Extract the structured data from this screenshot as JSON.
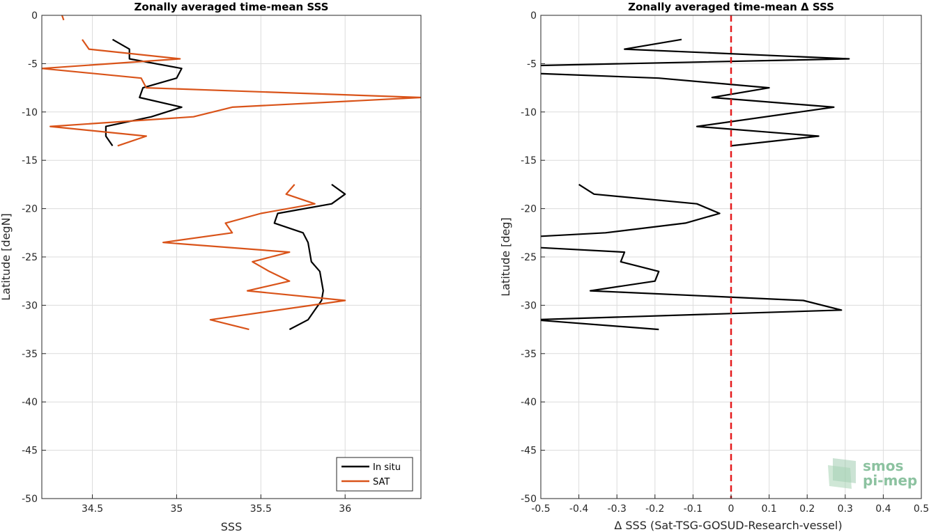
{
  "chart_data": [
    {
      "type": "line",
      "title": "Zonally averaged time-mean SSS",
      "xlabel": "SSS",
      "ylabel": "Latitude [degN]",
      "xlim": [
        34.2,
        36.45
      ],
      "ylim": [
        -50,
        0
      ],
      "xticks": [
        34.5,
        35,
        35.5,
        36
      ],
      "xtick_labels": [
        "34.5",
        "35",
        "35.5",
        "36"
      ],
      "yticks": [
        0,
        -5,
        -10,
        -15,
        -20,
        -25,
        -30,
        -35,
        -40,
        -45,
        -50
      ],
      "ytick_labels": [
        "0",
        "-5",
        "-10",
        "-15",
        "-20",
        "-25",
        "-30",
        "-35",
        "-40",
        "-45",
        "-50"
      ],
      "grid": true,
      "legend_position": "bottom-right",
      "series": [
        {
          "name": "In situ",
          "color": "#000000",
          "segments": [
            [
              [
                34.62,
                -2.5
              ],
              [
                34.72,
                -3.5
              ],
              [
                34.72,
                -4.5
              ],
              [
                35.03,
                -5.5
              ],
              [
                35.0,
                -6.5
              ],
              [
                34.8,
                -7.5
              ],
              [
                34.78,
                -8.5
              ],
              [
                35.03,
                -9.5
              ],
              [
                34.85,
                -10.5
              ],
              [
                34.58,
                -11.5
              ],
              [
                34.58,
                -12.5
              ],
              [
                34.62,
                -13.5
              ]
            ],
            [
              [
                35.92,
                -17.5
              ],
              [
                36.0,
                -18.5
              ],
              [
                35.92,
                -19.5
              ],
              [
                35.6,
                -20.5
              ],
              [
                35.58,
                -21.5
              ],
              [
                35.75,
                -22.5
              ],
              [
                35.78,
                -23.5
              ],
              [
                35.8,
                -25.5
              ],
              [
                35.85,
                -26.5
              ],
              [
                35.87,
                -28.5
              ],
              [
                35.86,
                -29.5
              ],
              [
                35.82,
                -30.5
              ],
              [
                35.78,
                -31.5
              ],
              [
                35.67,
                -32.5
              ]
            ]
          ]
        },
        {
          "name": "SAT",
          "color": "#d95319",
          "segments": [
            [
              [
                34.32,
                0
              ],
              [
                34.33,
                -0.5
              ]
            ],
            [
              [
                34.44,
                -2.5
              ],
              [
                34.48,
                -3.5
              ],
              [
                35.02,
                -4.5
              ],
              [
                34.2,
                -5.5
              ],
              [
                34.79,
                -6.5
              ],
              [
                34.82,
                -7.5
              ],
              [
                36.45,
                -8.5
              ],
              [
                35.33,
                -9.5
              ],
              [
                35.1,
                -10.5
              ],
              [
                34.25,
                -11.5
              ],
              [
                34.82,
                -12.5
              ],
              [
                34.65,
                -13.5
              ]
            ],
            [
              [
                35.7,
                -17.5
              ],
              [
                35.65,
                -18.5
              ],
              [
                35.82,
                -19.5
              ],
              [
                35.5,
                -20.5
              ],
              [
                35.29,
                -21.5
              ],
              [
                35.33,
                -22.5
              ],
              [
                34.92,
                -23.5
              ],
              [
                35.67,
                -24.5
              ],
              [
                35.45,
                -25.5
              ],
              [
                35.55,
                -26.5
              ],
              [
                35.67,
                -27.5
              ],
              [
                35.42,
                -28.5
              ],
              [
                36.0,
                -29.5
              ],
              [
                35.2,
                -31.5
              ],
              [
                35.43,
                -32.5
              ]
            ]
          ]
        }
      ]
    },
    {
      "type": "line",
      "title": "Zonally averaged time-mean Δ SSS",
      "xlabel": "Δ SSS (Sat-TSG-GOSUD-Research-vessel)",
      "ylabel": "Latitude [deg]",
      "xlim": [
        -0.5,
        0.5
      ],
      "ylim": [
        -50,
        0
      ],
      "xticks": [
        -0.5,
        -0.4,
        -0.3,
        -0.2,
        -0.1,
        0,
        0.1,
        0.2,
        0.3,
        0.4,
        0.5
      ],
      "xtick_labels": [
        "-0.5",
        "-0.4",
        "-0.3",
        "-0.2",
        "-0.1",
        "0",
        "0.1",
        "0.2",
        "0.3",
        "0.4",
        "0.5"
      ],
      "yticks": [
        0,
        -5,
        -10,
        -15,
        -20,
        -25,
        -30,
        -35,
        -40,
        -45,
        -50
      ],
      "ytick_labels": [
        "0",
        "-5",
        "-10",
        "-15",
        "-20",
        "-25",
        "-30",
        "-35",
        "-40",
        "-45",
        "-50"
      ],
      "grid": true,
      "reference_line": {
        "x": 0,
        "color": "#e41a1c",
        "style": "dashed"
      },
      "series": [
        {
          "color": "#000000",
          "segments": [
            [
              [
                -0.13,
                -2.5
              ],
              [
                -0.28,
                -3.5
              ],
              [
                0.31,
                -4.5
              ],
              [
                -0.52,
                -5.2
              ]
            ],
            [
              [
                -0.52,
                -6.0
              ],
              [
                -0.19,
                -6.5
              ],
              [
                0.1,
                -7.5
              ],
              [
                -0.05,
                -8.5
              ],
              [
                0.27,
                -9.5
              ],
              [
                -0.09,
                -11.5
              ],
              [
                0.23,
                -12.5
              ],
              [
                0.0,
                -13.5
              ]
            ],
            [
              [
                -0.4,
                -17.5
              ],
              [
                -0.36,
                -18.5
              ],
              [
                -0.09,
                -19.5
              ],
              [
                -0.03,
                -20.5
              ],
              [
                -0.12,
                -21.5
              ],
              [
                -0.33,
                -22.5
              ],
              [
                -0.52,
                -22.9
              ]
            ],
            [
              [
                -0.52,
                -24.0
              ],
              [
                -0.28,
                -24.5
              ],
              [
                -0.29,
                -25.5
              ],
              [
                -0.19,
                -26.5
              ],
              [
                -0.2,
                -27.5
              ],
              [
                -0.37,
                -28.5
              ],
              [
                0.19,
                -29.5
              ],
              [
                0.29,
                -30.5
              ],
              [
                -0.52,
                -31.5
              ],
              [
                -0.19,
                -32.5
              ]
            ]
          ]
        }
      ]
    }
  ],
  "logo": {
    "line1": "smos",
    "line2": "pi-mep",
    "color": "#8cc2a0"
  }
}
